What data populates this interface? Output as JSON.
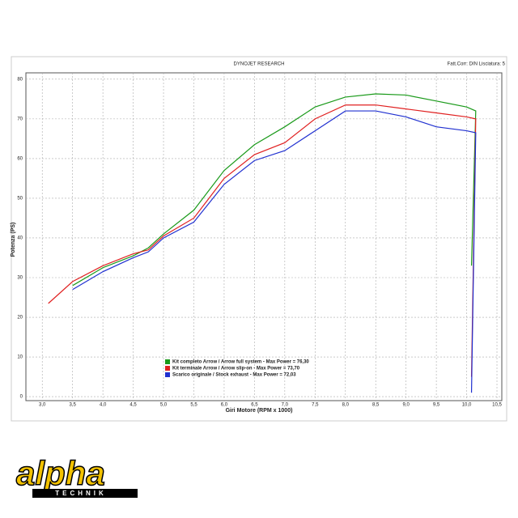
{
  "chart_data": {
    "type": "line",
    "title": "DYNOJET RESEARCH",
    "subtitle": "Fatt.Corr: DIN Lisciatura: 5",
    "x_label": "Giri Motore (RPM x 1000)",
    "y_label": "Potenza (PS)",
    "x": [
      3.1,
      3.5,
      4.0,
      4.5,
      4.75,
      5.0,
      5.5,
      6.0,
      6.5,
      7.0,
      7.5,
      8.0,
      8.5,
      9.0,
      9.5,
      10.0,
      10.15,
      10.08
    ],
    "series": [
      {
        "name": "Kit completo Arrow / Arrow full system - Max Power = 76,30",
        "color": "#1a9a1a",
        "values": [
          null,
          28,
          32.5,
          35.5,
          37.5,
          41,
          47,
          57,
          63.5,
          68,
          73,
          75.5,
          76.3,
          76,
          74.5,
          73,
          72,
          33
        ]
      },
      {
        "name": "Kit terminale Arrow / Arrow slip-on - Max Power = 73,70",
        "color": "#e02020",
        "values": [
          23.5,
          29,
          33,
          36,
          37,
          40.5,
          45,
          55,
          61,
          64,
          70,
          73.5,
          73.5,
          72.5,
          71.5,
          70.5,
          70,
          5
        ]
      },
      {
        "name": "Scarico originale / Stock exhaust - Max Power = 72,03",
        "color": "#2030d0",
        "values": [
          null,
          27,
          31.5,
          35,
          36.5,
          40,
          44,
          53.5,
          59.5,
          62,
          67,
          72,
          72,
          70.5,
          68,
          67,
          66.5,
          1
        ]
      }
    ],
    "xlim": [
      2.73,
      10.58
    ],
    "ylim": [
      -1,
      81.6
    ],
    "xticks": [
      {
        "value": 3.0,
        "label": "3,0"
      },
      {
        "value": 3.5,
        "label": "3,5"
      },
      {
        "value": 4.0,
        "label": "4,0"
      },
      {
        "value": 4.5,
        "label": "4,5"
      },
      {
        "value": 5.0,
        "label": "5,0"
      },
      {
        "value": 5.5,
        "label": "5,5"
      },
      {
        "value": 6.0,
        "label": "6,0"
      },
      {
        "value": 6.5,
        "label": "6,5"
      },
      {
        "value": 7.0,
        "label": "7,0"
      },
      {
        "value": 7.5,
        "label": "7,5"
      },
      {
        "value": 8.0,
        "label": "8,0"
      },
      {
        "value": 8.5,
        "label": "8,5"
      },
      {
        "value": 9.0,
        "label": "9,0"
      },
      {
        "value": 9.5,
        "label": "9,5"
      },
      {
        "value": 10.0,
        "label": "10,0"
      },
      {
        "value": 10.5,
        "label": "10,5"
      }
    ],
    "yticks": [
      0,
      10,
      20,
      30,
      40,
      50,
      60,
      70,
      80
    ],
    "grid": true
  },
  "logo": {
    "name": "alpha",
    "tagline": "TECHNIK"
  }
}
